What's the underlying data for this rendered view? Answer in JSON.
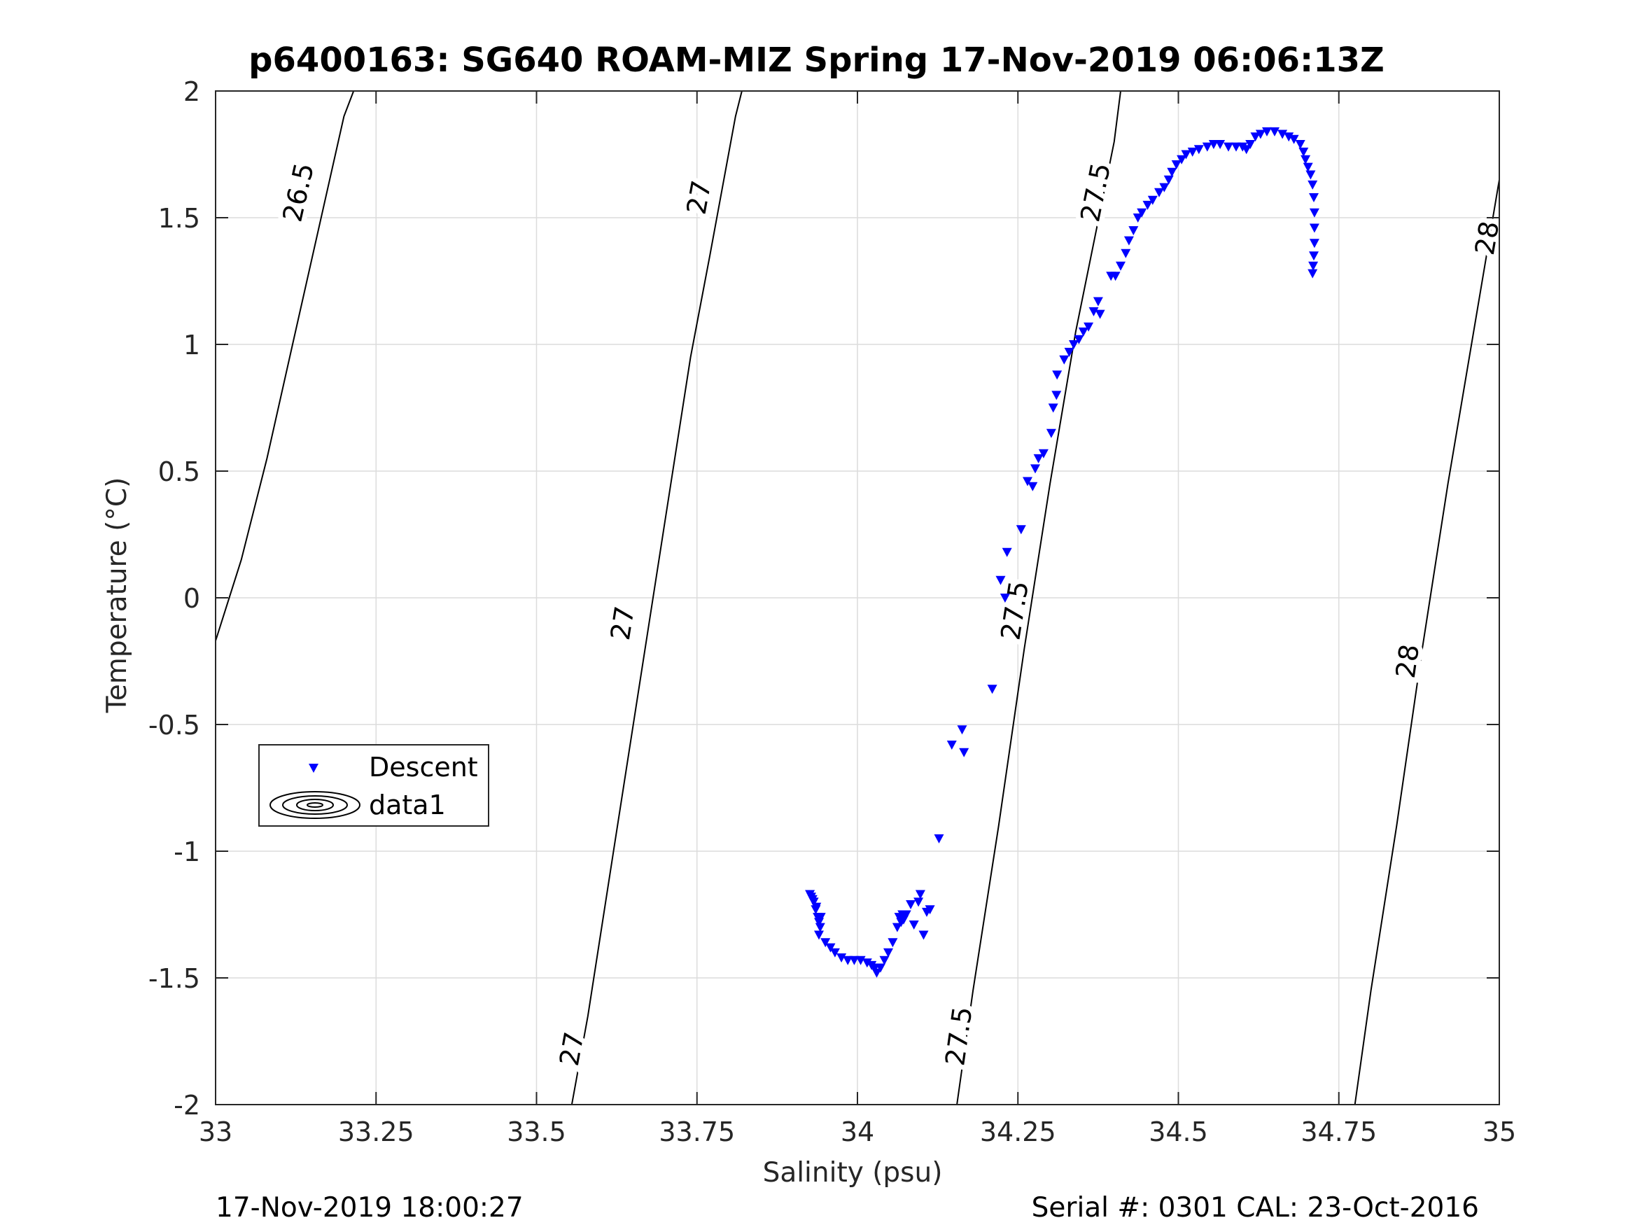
{
  "title": "p6400163: SG640 ROAM-MIZ Spring 17-Nov-2019 06:06:13Z",
  "footer": {
    "left": "17-Nov-2019 18:00:27",
    "right": "Serial #: 0301  CAL: 23-Oct-2016"
  },
  "chart_data": {
    "type": "scatter",
    "title": "p6400163: SG640 ROAM-MIZ Spring 17-Nov-2019 06:06:13Z",
    "xlabel": "Salinity (psu)",
    "ylabel": "Temperature (°C)",
    "xlim": [
      33,
      35
    ],
    "ylim": [
      -2,
      2
    ],
    "xticks": [
      "33",
      "33.25",
      "33.5",
      "33.75",
      "34",
      "34.25",
      "34.5",
      "34.75",
      "35"
    ],
    "yticks": [
      "-2",
      "-1.5",
      "-1",
      "-0.5",
      "0",
      "0.5",
      "1",
      "1.5",
      "2"
    ],
    "grid": true,
    "legend": {
      "placement": "lower-left",
      "entries": [
        "Descent",
        "data1"
      ]
    },
    "colors": {
      "descent": "#0000ff",
      "contours": "#000000",
      "grid": "#dcdcdc"
    },
    "series": [
      {
        "name": "Descent",
        "marker": "triangle-down",
        "color": "#0000ff",
        "points": [
          [
            33.926,
            -1.17
          ],
          [
            33.928,
            -1.18
          ],
          [
            33.932,
            -1.2
          ],
          [
            33.935,
            -1.23
          ],
          [
            33.938,
            -1.26
          ],
          [
            33.94,
            -1.28
          ],
          [
            33.942,
            -1.3
          ],
          [
            33.943,
            -1.26
          ],
          [
            33.936,
            -1.22
          ],
          [
            33.93,
            -1.19
          ],
          [
            33.94,
            -1.33
          ],
          [
            33.95,
            -1.36
          ],
          [
            33.958,
            -1.38
          ],
          [
            33.965,
            -1.4
          ],
          [
            33.975,
            -1.42
          ],
          [
            33.985,
            -1.43
          ],
          [
            33.995,
            -1.43
          ],
          [
            34.005,
            -1.43
          ],
          [
            34.015,
            -1.44
          ],
          [
            34.022,
            -1.45
          ],
          [
            34.027,
            -1.46
          ],
          [
            34.03,
            -1.48
          ],
          [
            34.036,
            -1.46
          ],
          [
            34.042,
            -1.43
          ],
          [
            34.048,
            -1.4
          ],
          [
            34.055,
            -1.36
          ],
          [
            34.062,
            -1.3
          ],
          [
            34.068,
            -1.28
          ],
          [
            34.072,
            -1.27
          ],
          [
            34.076,
            -1.25
          ],
          [
            34.07,
            -1.25
          ],
          [
            34.065,
            -1.26
          ],
          [
            34.083,
            -1.21
          ],
          [
            34.088,
            -1.29
          ],
          [
            34.095,
            -1.2
          ],
          [
            34.098,
            -1.17
          ],
          [
            34.103,
            -1.33
          ],
          [
            34.108,
            -1.24
          ],
          [
            34.113,
            -1.23
          ],
          [
            34.127,
            -0.95
          ],
          [
            34.147,
            -0.58
          ],
          [
            34.163,
            -0.52
          ],
          [
            34.166,
            -0.61
          ],
          [
            34.21,
            -0.36
          ],
          [
            34.223,
            0.07
          ],
          [
            34.23,
            0.0
          ],
          [
            34.233,
            0.18
          ],
          [
            34.255,
            0.27
          ],
          [
            34.265,
            0.46
          ],
          [
            34.273,
            0.44
          ],
          [
            34.277,
            0.51
          ],
          [
            34.282,
            0.55
          ],
          [
            34.29,
            0.57
          ],
          [
            34.302,
            0.65
          ],
          [
            34.305,
            0.75
          ],
          [
            34.31,
            0.8
          ],
          [
            34.311,
            0.88
          ],
          [
            34.322,
            0.94
          ],
          [
            34.33,
            0.97
          ],
          [
            34.337,
            1.0
          ],
          [
            34.345,
            1.02
          ],
          [
            34.352,
            1.05
          ],
          [
            34.36,
            1.07
          ],
          [
            34.368,
            1.13
          ],
          [
            34.375,
            1.17
          ],
          [
            34.378,
            1.12
          ],
          [
            34.395,
            1.27
          ],
          [
            34.402,
            1.27
          ],
          [
            34.41,
            1.31
          ],
          [
            34.418,
            1.36
          ],
          [
            34.423,
            1.41
          ],
          [
            34.43,
            1.45
          ],
          [
            34.437,
            1.5
          ],
          [
            34.443,
            1.52
          ],
          [
            34.452,
            1.55
          ],
          [
            34.46,
            1.57
          ],
          [
            34.47,
            1.6
          ],
          [
            34.478,
            1.62
          ],
          [
            34.485,
            1.65
          ],
          [
            34.49,
            1.68
          ],
          [
            34.497,
            1.71
          ],
          [
            34.505,
            1.73
          ],
          [
            34.512,
            1.75
          ],
          [
            34.522,
            1.76
          ],
          [
            34.532,
            1.77
          ],
          [
            34.545,
            1.78
          ],
          [
            34.555,
            1.79
          ],
          [
            34.565,
            1.79
          ],
          [
            34.578,
            1.78
          ],
          [
            34.59,
            1.78
          ],
          [
            34.6,
            1.78
          ],
          [
            34.606,
            1.77
          ],
          [
            34.612,
            1.79
          ],
          [
            34.62,
            1.82
          ],
          [
            34.628,
            1.83
          ],
          [
            34.638,
            1.84
          ],
          [
            34.65,
            1.84
          ],
          [
            34.662,
            1.83
          ],
          [
            34.672,
            1.82
          ],
          [
            34.68,
            1.81
          ],
          [
            34.69,
            1.79
          ],
          [
            34.695,
            1.76
          ],
          [
            34.698,
            1.73
          ],
          [
            34.702,
            1.7
          ],
          [
            34.706,
            1.67
          ],
          [
            34.709,
            1.63
          ],
          [
            34.711,
            1.58
          ],
          [
            34.712,
            1.52
          ],
          [
            34.712,
            1.46
          ],
          [
            34.712,
            1.4
          ],
          [
            34.711,
            1.35
          ],
          [
            34.71,
            1.31
          ],
          [
            34.709,
            1.28
          ]
        ]
      }
    ],
    "contours": [
      {
        "name": "data1",
        "levels": [
          {
            "value": "26.5",
            "points": [
              [
                33.0,
                -0.17
              ],
              [
                33.04,
                0.15
              ],
              [
                33.08,
                0.55
              ],
              [
                33.12,
                1.0
              ],
              [
                33.16,
                1.45
              ],
              [
                33.2,
                1.9
              ],
              [
                33.215,
                2.0
              ]
            ],
            "labels": [
              [
                33.129,
                1.6
              ]
            ]
          },
          {
            "value": "27",
            "points": [
              [
                33.555,
                -2.0
              ],
              [
                33.58,
                -1.65
              ],
              [
                33.62,
                -1.0
              ],
              [
                33.66,
                -0.35
              ],
              [
                33.7,
                0.3
              ],
              [
                33.74,
                0.95
              ],
              [
                33.77,
                1.35
              ],
              [
                33.81,
                1.9
              ],
              [
                33.82,
                2.0
              ]
            ],
            "labels": [
              [
                33.555,
                -1.78
              ],
              [
                33.634,
                -0.1
              ],
              [
                33.753,
                1.58
              ]
            ]
          },
          {
            "value": "27.5",
            "points": [
              [
                34.155,
                -2.0
              ],
              [
                34.18,
                -1.55
              ],
              [
                34.22,
                -0.9
              ],
              [
                34.26,
                -0.2
              ],
              [
                34.3,
                0.45
              ],
              [
                34.34,
                1.05
              ],
              [
                34.38,
                1.55
              ],
              [
                34.4,
                1.8
              ],
              [
                34.41,
                2.0
              ]
            ],
            "labels": [
              [
                34.158,
                -1.73
              ],
              [
                34.245,
                -0.05
              ],
              [
                34.371,
                1.6
              ]
            ]
          },
          {
            "value": "28",
            "points": [
              [
                34.775,
                -2.0
              ],
              [
                34.8,
                -1.55
              ],
              [
                34.84,
                -0.9
              ],
              [
                34.88,
                -0.2
              ],
              [
                34.92,
                0.45
              ],
              [
                34.96,
                1.05
              ],
              [
                35.0,
                1.65
              ]
            ],
            "labels": [
              [
                34.857,
                -0.25
              ],
              [
                34.981,
                1.42
              ]
            ]
          }
        ]
      }
    ]
  }
}
